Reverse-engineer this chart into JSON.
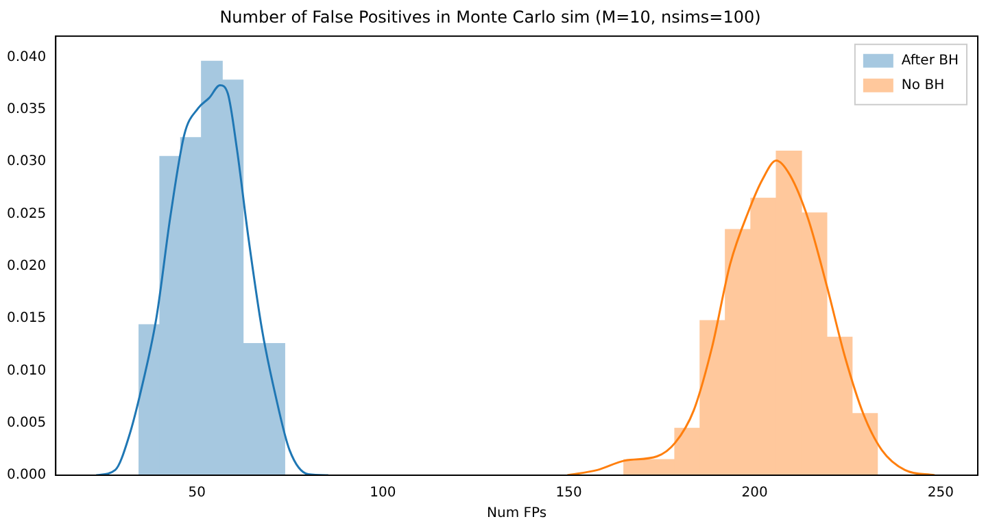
{
  "chart_data": {
    "type": "histogram",
    "title": "Number of False Positives in Monte Carlo sim (M=10, nsims=100)",
    "xlabel": "Num FPs",
    "xlim": [
      12,
      260
    ],
    "xticks": [
      50,
      100,
      150,
      200,
      250
    ],
    "ylim": [
      0,
      0.042
    ],
    "yticks": [
      {
        "value": 0,
        "label": "0.000"
      },
      {
        "value": 0.005,
        "label": "0.005"
      },
      {
        "value": 0.01,
        "label": "0.010"
      },
      {
        "value": 0.015,
        "label": "0.015"
      },
      {
        "value": 0.02,
        "label": "0.020"
      },
      {
        "value": 0.025,
        "label": "0.025"
      },
      {
        "value": 0.03,
        "label": "0.030"
      },
      {
        "value": 0.035,
        "label": "0.035"
      },
      {
        "value": 0.04,
        "label": "0.040"
      }
    ],
    "legend": "top right",
    "grid": false,
    "series": [
      {
        "type": "histogram",
        "name": "After BH",
        "color": "#a6c8e0",
        "bins": [
          34.4,
          40,
          45.6,
          51.2,
          56.8,
          62.4,
          68,
          73.6
        ],
        "values": [
          0.0144,
          0.0305,
          0.0323,
          0.0396,
          0.0378,
          0.0126,
          0.0126
        ]
      },
      {
        "type": "histogram",
        "name": "No BH",
        "color": "#ffc89c",
        "bins": [
          164.8,
          171.6,
          178.5,
          185.3,
          192.1,
          198.9,
          205.8,
          212.6,
          219.4,
          226.2,
          233
        ],
        "values": [
          0.0015,
          0.0015,
          0.0045,
          0.0148,
          0.0235,
          0.0265,
          0.031,
          0.0251,
          0.0132,
          0.0059
        ]
      },
      {
        "type": "line",
        "color": "#1f77b4",
        "x": [
          22.9,
          28,
          31.7,
          35.4,
          39.1,
          42.9,
          46.6,
          50.3,
          53.3,
          56.2,
          58.3,
          60.7,
          63.8,
          67.5,
          71.2,
          74.9,
          79.9,
          85.3
        ],
        "values": [
          0,
          0.0005,
          0.0037,
          0.0088,
          0.0151,
          0.0249,
          0.0326,
          0.0351,
          0.0361,
          0.0373,
          0.0365,
          0.0313,
          0.0228,
          0.0139,
          0.0075,
          0.0024,
          0.0001,
          0
        ]
      },
      {
        "type": "line",
        "color": "#ff7f0e",
        "x": [
          149.6,
          157.7,
          165.1,
          173.7,
          178.6,
          183.6,
          188.5,
          193.4,
          198.4,
          202.1,
          205.8,
          209.5,
          214.4,
          219.4,
          224.3,
          229.3,
          234.2,
          240.4,
          248.4
        ],
        "values": [
          0,
          0.0005,
          0.0014,
          0.0018,
          0.0031,
          0.0062,
          0.0122,
          0.0202,
          0.0253,
          0.0283,
          0.0301,
          0.0287,
          0.0245,
          0.0181,
          0.0113,
          0.0058,
          0.0024,
          0.0005,
          0
        ]
      }
    ]
  }
}
